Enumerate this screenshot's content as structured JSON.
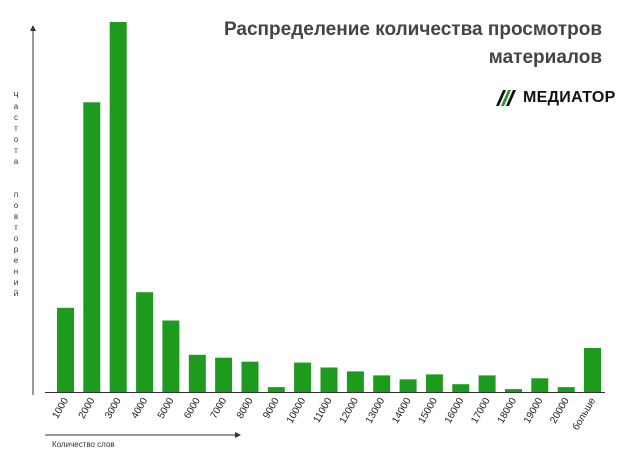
{
  "title": "Распределение количества просмотров материалов",
  "logo": {
    "text": "МЕДИАТОР",
    "icon": "mediator-logo-icon"
  },
  "chart_data": {
    "type": "bar",
    "title": "Распределение количества просмотров материалов",
    "xlabel": "Количество слов",
    "ylabel": "Частота повторений",
    "categories": [
      "1000",
      "2000",
      "3000",
      "4000",
      "5000",
      "6000",
      "7000",
      "8000",
      "9000",
      "10000",
      "11000",
      "12000",
      "13000",
      "14000",
      "15000",
      "16000",
      "17000",
      "18000",
      "19000",
      "20000",
      "больше"
    ],
    "values": [
      86,
      296,
      378,
      102,
      73,
      38,
      35,
      31,
      5,
      30,
      25,
      21,
      17,
      13,
      18,
      8,
      17,
      3,
      14,
      5,
      45
    ],
    "ylim": [
      0,
      378
    ],
    "bar_color": "#1e9a1e",
    "grid": false,
    "legend": "none"
  }
}
